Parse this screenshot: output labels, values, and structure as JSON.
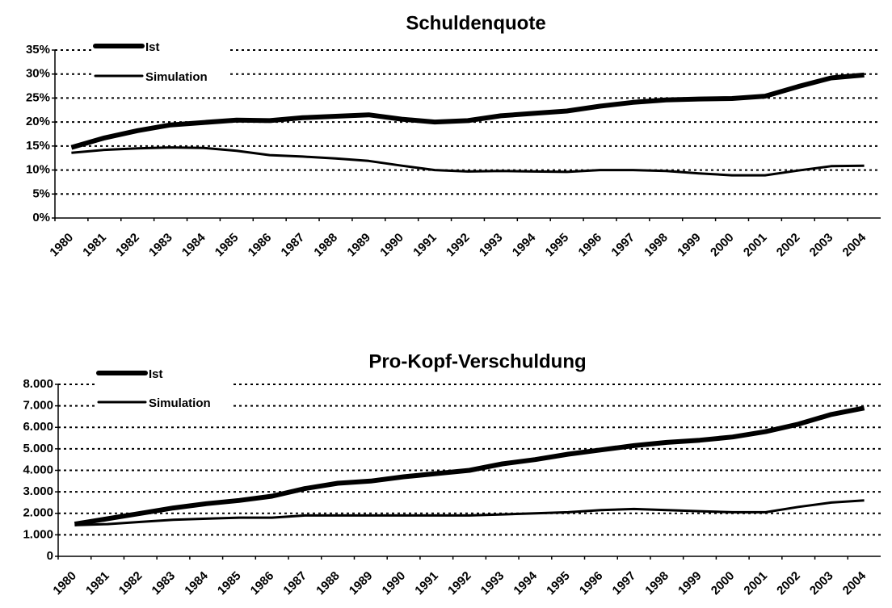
{
  "chart_data": [
    {
      "type": "line",
      "title": "Schuldenquote",
      "categories": [
        "1980",
        "1981",
        "1982",
        "1983",
        "1984",
        "1985",
        "1986",
        "1987",
        "1988",
        "1989",
        "1990",
        "1991",
        "1992",
        "1993",
        "1994",
        "1995",
        "1996",
        "1997",
        "1998",
        "1999",
        "2000",
        "2001",
        "2002",
        "2003",
        "2004"
      ],
      "series": [
        {
          "name": "Ist",
          "color": "#000000",
          "values": [
            14.7,
            16.7,
            18.2,
            19.4,
            19.9,
            20.4,
            20.3,
            20.9,
            21.2,
            21.5,
            20.6,
            20.0,
            20.3,
            21.3,
            21.8,
            22.3,
            23.3,
            24.1,
            24.6,
            24.8,
            24.9,
            25.4,
            27.4,
            29.2,
            29.8
          ]
        },
        {
          "name": "Simulation",
          "color": "#000000",
          "values": [
            13.6,
            14.2,
            14.5,
            14.7,
            14.6,
            14.0,
            13.1,
            12.8,
            12.4,
            11.9,
            10.9,
            10.0,
            9.7,
            9.8,
            9.7,
            9.6,
            10.0,
            10.0,
            9.8,
            9.3,
            8.9,
            8.9,
            9.9,
            10.8,
            10.9
          ]
        }
      ],
      "ylim": [
        0,
        35
      ],
      "yticks": [
        {
          "value": 0,
          "label": "0%"
        },
        {
          "value": 5,
          "label": "5%"
        },
        {
          "value": 10,
          "label": "10%"
        },
        {
          "value": 15,
          "label": "15%"
        },
        {
          "value": 20,
          "label": "20%"
        },
        {
          "value": 25,
          "label": "25%"
        },
        {
          "value": 30,
          "label": "30%"
        },
        {
          "value": 35,
          "label": "35%"
        }
      ],
      "grid": true,
      "legend": "upper left"
    },
    {
      "type": "line",
      "title": "Pro-Kopf-Verschuldung",
      "categories": [
        "1980",
        "1981",
        "1982",
        "1983",
        "1984",
        "1985",
        "1986",
        "1987",
        "1988",
        "1989",
        "1990",
        "1991",
        "1992",
        "1993",
        "1994",
        "1995",
        "1996",
        "1997",
        "1998",
        "1999",
        "2000",
        "2001",
        "2002",
        "2003",
        "2004"
      ],
      "series": [
        {
          "name": "Ist",
          "color": "#000000",
          "values": [
            1500,
            1750,
            2000,
            2250,
            2450,
            2600,
            2800,
            3150,
            3400,
            3500,
            3700,
            3850,
            4000,
            4300,
            4500,
            4750,
            4950,
            5150,
            5300,
            5400,
            5550,
            5800,
            6150,
            6600,
            6900
          ]
        },
        {
          "name": "Simulation",
          "color": "#000000",
          "values": [
            1450,
            1500,
            1600,
            1700,
            1750,
            1800,
            1800,
            1900,
            1900,
            1900,
            1900,
            1900,
            1900,
            1950,
            2000,
            2050,
            2150,
            2200,
            2150,
            2100,
            2050,
            2050,
            2300,
            2500,
            2600
          ]
        }
      ],
      "ylim": [
        0,
        8000
      ],
      "yticks": [
        0,
        {
          "value": 1000,
          "label": "1.000"
        },
        {
          "value": 2000,
          "label": "2.000"
        },
        {
          "value": 3000,
          "label": "3.000"
        },
        {
          "value": 4000,
          "label": "4.000"
        },
        {
          "value": 5000,
          "label": "5.000"
        },
        {
          "value": 6000,
          "label": "6.000"
        },
        {
          "value": 7000,
          "label": "7.000"
        },
        {
          "value": 8000,
          "label": "8.000"
        }
      ],
      "grid": true,
      "legend": "upper left"
    }
  ]
}
